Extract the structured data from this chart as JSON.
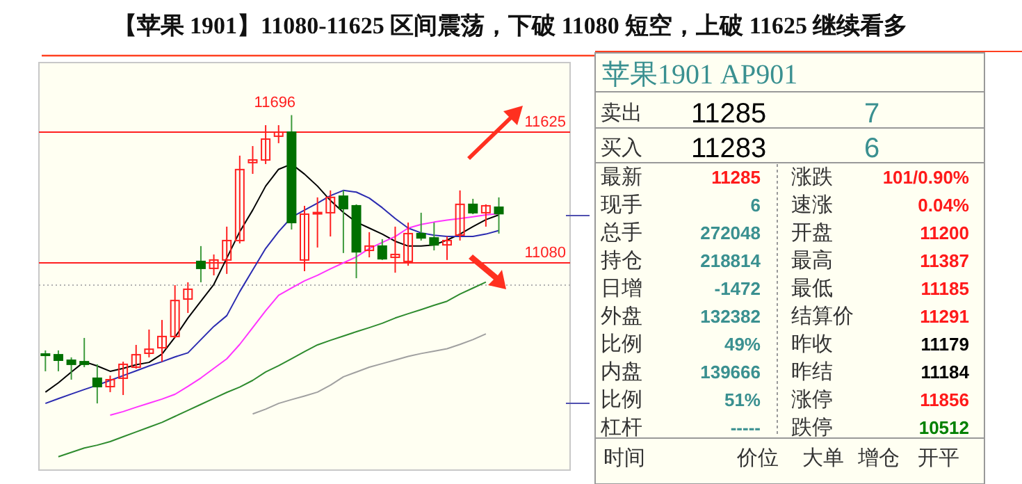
{
  "chart_data": [
    {
      "type": "candlestick",
      "title": "【苹果 1901】11080-11625 区间震荡，下破 11080 短空，上破 11625 继续看多",
      "categories": [
        null,
        null,
        null,
        null,
        null,
        null,
        null,
        null,
        null,
        null,
        null,
        null,
        null,
        null,
        null,
        null,
        null,
        null,
        null,
        null,
        null,
        null,
        null,
        null,
        null,
        null,
        null,
        null,
        null,
        null,
        null,
        null,
        null,
        null,
        null,
        null
      ],
      "ohlc": [
        [
          10700,
          10715,
          10628,
          10695
        ],
        [
          10697,
          10715,
          10628,
          10674
        ],
        [
          10674,
          10686,
          10593,
          10657
        ],
        [
          10668,
          10767,
          10645,
          10657
        ],
        [
          10599,
          10657,
          10494,
          10564
        ],
        [
          10564,
          10610,
          10541,
          10593
        ],
        [
          10599,
          10668,
          10529,
          10657
        ],
        [
          10645,
          10738,
          10639,
          10697
        ],
        [
          10703,
          10802,
          10686,
          10720
        ],
        [
          10726,
          10842,
          10668,
          10773
        ],
        [
          10773,
          10987,
          10767,
          10923
        ],
        [
          10929,
          10999,
          10871,
          10970
        ],
        [
          11086,
          11150,
          10999,
          11057
        ],
        [
          11057,
          11115,
          11028,
          11092
        ],
        [
          11092,
          11231,
          11034,
          11173
        ],
        [
          11173,
          11527,
          11161,
          11469
        ],
        [
          11498,
          11567,
          11451,
          11509
        ],
        [
          11509,
          11654,
          11492,
          11596
        ],
        [
          11608,
          11654,
          11579,
          11625
        ],
        [
          11625,
          11696,
          11219,
          11248
        ],
        [
          11092,
          11318,
          11045,
          11283
        ],
        [
          11285,
          11353,
          11144,
          11290
        ],
        [
          11289,
          11382,
          11190,
          11353
        ],
        [
          11358,
          11382,
          11121,
          11306
        ],
        [
          11318,
          11324,
          11016,
          11126
        ],
        [
          11132,
          11208,
          11103,
          11150
        ],
        [
          11150,
          11179,
          11092,
          11097
        ],
        [
          11103,
          11231,
          11039,
          11115
        ],
        [
          11086,
          11248,
          11068,
          11202
        ],
        [
          11202,
          11289,
          11173,
          11184
        ],
        [
          11184,
          11248,
          11132,
          11155
        ],
        [
          11155,
          11190,
          11092,
          11173
        ],
        [
          11196,
          11382,
          11173,
          11324
        ],
        [
          11324,
          11347,
          11283,
          11289
        ],
        [
          11289,
          11324,
          11231,
          11318
        ],
        [
          11312,
          11353,
          11202,
          11285
        ]
      ],
      "series": [
        {
          "type": "line",
          "color": "#000000",
          "values": [
            10541,
            10580,
            10625,
            10668,
            10650,
            10628,
            10640,
            10655,
            10665,
            10700,
            10770,
            10850,
            10920,
            10990,
            11100,
            11210,
            11300,
            11400,
            11470,
            11492,
            11450,
            11400,
            11340,
            11290,
            11250,
            11225,
            11200,
            11170,
            11150,
            11150,
            11155,
            11175,
            11200,
            11231,
            11260,
            11280
          ]
        },
        {
          "type": "line",
          "color": "#2b2bb0",
          "values": [
            10494,
            10514,
            10533,
            10552,
            10570,
            10590,
            10610,
            10630,
            10650,
            10668,
            10688,
            10705,
            10760,
            10815,
            10860,
            10960,
            11050,
            11140,
            11210,
            11270,
            11300,
            11329,
            11360,
            11382,
            11375,
            11350,
            11310,
            11265,
            11225,
            11205,
            11195,
            11190,
            11190,
            11190,
            11200,
            11215
          ]
        },
        {
          "type": "line",
          "color": "#ff33ff",
          "values": [
            null,
            null,
            null,
            null,
            null,
            10445,
            10460,
            10478,
            10495,
            10512,
            10532,
            10565,
            10600,
            10640,
            10680,
            10740,
            10810,
            10880,
            10945,
            10975,
            11005,
            11028,
            11055,
            11080,
            11105,
            11140,
            11165,
            11190,
            11225,
            11240,
            11250,
            11258,
            11265,
            11272,
            11280,
            11285
          ]
        },
        {
          "type": "line",
          "color": "#2e8b2e",
          "values": [
            null,
            10272,
            10290,
            10308,
            10320,
            10335,
            10355,
            10375,
            10395,
            10415,
            10440,
            10465,
            10490,
            10515,
            10540,
            10562,
            10590,
            10625,
            10651,
            10680,
            10710,
            10738,
            10757,
            10775,
            10793,
            10810,
            10828,
            10850,
            10868,
            10885,
            10903,
            10920,
            10950,
            10975,
            11000,
            null
          ]
        },
        {
          "type": "line",
          "color": "#a0a0a0",
          "values": [
            null,
            null,
            null,
            null,
            null,
            null,
            null,
            null,
            null,
            null,
            null,
            null,
            null,
            null,
            null,
            null,
            10450,
            10470,
            10494,
            10510,
            10525,
            10541,
            10570,
            10605,
            10625,
            10645,
            10660,
            10675,
            10690,
            10702,
            10712,
            10722,
            10740,
            10760,
            10784,
            null
          ]
        }
      ],
      "ylim": [
        10216,
        11915
      ],
      "tick_labels": false,
      "ref_lines": [
        {
          "axis": "y",
          "value": 11625,
          "label": "11625",
          "color": "#ff2020"
        },
        {
          "axis": "y",
          "value": 11080,
          "label": "11080",
          "color": "#ff2020"
        },
        {
          "axis": "y",
          "value": 10987,
          "label": null,
          "color": "#b0b0b0",
          "line_style": "dotted"
        }
      ],
      "annotations": [
        "11696"
      ]
    },
    {
      "type": "other",
      "title": "苹果1901  AP901",
      "annotations": [
        "卖出",
        "11285",
        "7",
        "买入",
        "11283",
        "6",
        "最新",
        "11285",
        "涨跌",
        "101/0.90%",
        "现手",
        "6",
        "速涨",
        "0.04%",
        "总手",
        "272048",
        "开盘",
        "11200",
        "持仓",
        "218814",
        "最高",
        "11387",
        "日增",
        "-1472",
        "最低",
        "11185",
        "外盘",
        "132382",
        "结算价",
        "11291",
        "比例",
        "49%",
        "昨收",
        "11179",
        "内盘",
        "139666",
        "昨结",
        "11184",
        "比例",
        "51%",
        "涨停",
        "11856",
        "杠杆",
        "-----",
        "跌停",
        "10512",
        "时间",
        "价位",
        "大单",
        "增仓",
        "开平"
      ],
      "colors": [
        "#333333",
        "#000000",
        "#3a9090",
        "#333333",
        "#000000",
        "#3a9090",
        "#333333",
        "#ff1a1a",
        "#333333",
        "#ff1a1a",
        "#333333",
        "#3a9090",
        "#333333",
        "#ff1a1a",
        "#333333",
        "#3a9090",
        "#333333",
        "#ff1a1a",
        "#333333",
        "#3a9090",
        "#333333",
        "#ff1a1a",
        "#333333",
        "#3a9090",
        "#333333",
        "#ff1a1a",
        "#333333",
        "#3a9090",
        "#333333",
        "#ff1a1a",
        "#333333",
        "#3a9090",
        "#333333",
        "#000000",
        "#333333",
        "#3a9090",
        "#333333",
        "#000000",
        "#333333",
        "#3a9090",
        "#333333",
        "#ff1a1a",
        "#333333",
        "#3a9090",
        "#333333",
        "#008000",
        "#333333",
        "#333333",
        "#333333",
        "#333333",
        "#333333"
      ]
    }
  ]
}
